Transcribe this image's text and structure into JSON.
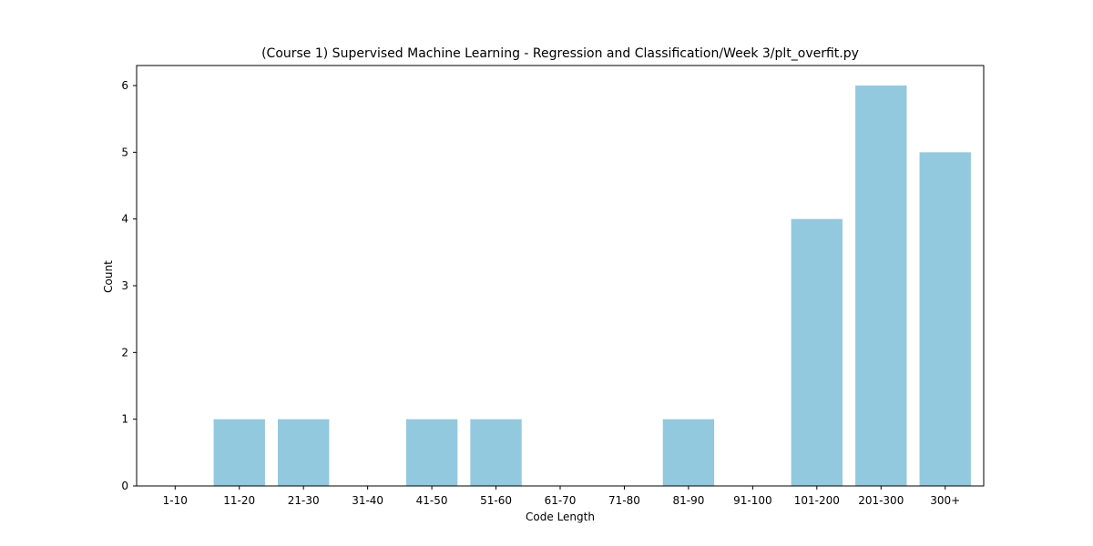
{
  "chart_data": {
    "type": "bar",
    "title": "(Course 1) Supervised Machine Learning - Regression and Classification/Week 3/plt_overfit.py",
    "xlabel": "Code Length",
    "ylabel": "Count",
    "categories": [
      "1-10",
      "11-20",
      "21-30",
      "31-40",
      "41-50",
      "51-60",
      "61-70",
      "71-80",
      "81-90",
      "91-100",
      "101-200",
      "201-300",
      "300+"
    ],
    "values": [
      0,
      1,
      1,
      0,
      1,
      1,
      0,
      0,
      1,
      0,
      4,
      6,
      5
    ],
    "ylim": [
      0,
      6.3
    ],
    "yticks": [
      0,
      1,
      2,
      3,
      4,
      5,
      6
    ],
    "bar_color": "#92c9de",
    "grid": false
  }
}
